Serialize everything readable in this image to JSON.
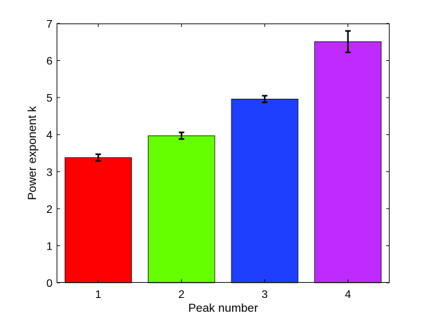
{
  "chart_data": {
    "type": "bar",
    "categories": [
      "1",
      "2",
      "3",
      "4"
    ],
    "values": [
      3.38,
      3.97,
      4.96,
      6.51
    ],
    "errors": [
      0.09,
      0.09,
      0.09,
      0.29
    ],
    "colors": [
      "#ff0000",
      "#66ff00",
      "#1f3fff",
      "#bf2bff"
    ],
    "xlabel": "Peak number",
    "ylabel": "Power exponent k",
    "ylim": [
      0,
      7
    ],
    "yticks": [
      "0",
      "1",
      "2",
      "3",
      "4",
      "5",
      "6",
      "7"
    ],
    "xlim": [
      0.0,
      4.0
    ],
    "grid": false,
    "legend": "none"
  }
}
